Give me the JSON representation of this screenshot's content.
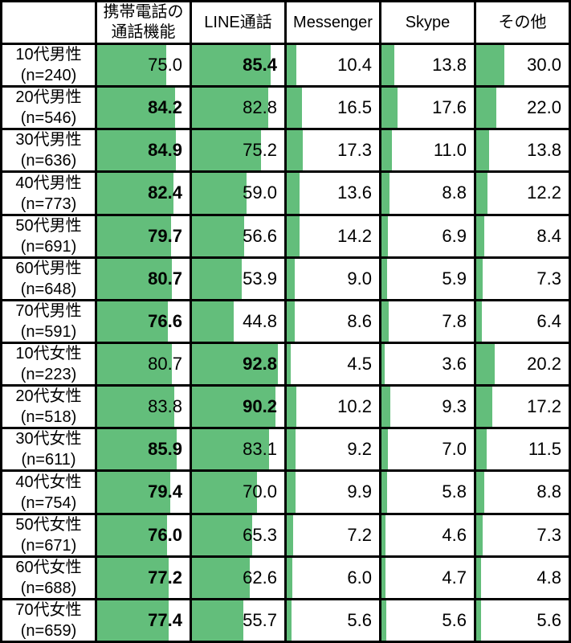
{
  "chart_data": {
    "type": "table",
    "title": "",
    "description_of_visual": "data table with proportional in-cell horizontal data bars; row maximum value rendered in bold",
    "bar_color": "#63BE7B",
    "border_color": "#000000",
    "bar_scale": [
      0,
      100
    ],
    "corner_header": "",
    "columns": [
      "携帯電話の通話機能",
      "LINE通話",
      "Messenger",
      "Skype",
      "その他"
    ],
    "rows": [
      {
        "label": "10代男性",
        "n_label": "(n=240)",
        "values": [
          75.0,
          85.4,
          10.4,
          13.8,
          30.0
        ]
      },
      {
        "label": "20代男性",
        "n_label": "(n=546)",
        "values": [
          84.2,
          82.8,
          16.5,
          17.6,
          22.0
        ]
      },
      {
        "label": "30代男性",
        "n_label": "(n=636)",
        "values": [
          84.9,
          75.2,
          17.3,
          11.0,
          13.8
        ]
      },
      {
        "label": "40代男性",
        "n_label": "(n=773)",
        "values": [
          82.4,
          59.0,
          13.6,
          8.8,
          12.2
        ]
      },
      {
        "label": "50代男性",
        "n_label": "(n=691)",
        "values": [
          79.7,
          56.6,
          14.2,
          6.9,
          8.4
        ]
      },
      {
        "label": "60代男性",
        "n_label": "(n=648)",
        "values": [
          80.7,
          53.9,
          9.0,
          5.9,
          7.3
        ]
      },
      {
        "label": "70代男性",
        "n_label": "(n=591)",
        "values": [
          76.6,
          44.8,
          8.6,
          7.8,
          6.4
        ]
      },
      {
        "label": "10代女性",
        "n_label": "(n=223)",
        "values": [
          80.7,
          92.8,
          4.5,
          3.6,
          20.2
        ]
      },
      {
        "label": "20代女性",
        "n_label": "(n=518)",
        "values": [
          83.8,
          90.2,
          10.2,
          9.3,
          17.2
        ]
      },
      {
        "label": "30代女性",
        "n_label": "(n=611)",
        "values": [
          85.9,
          83.1,
          9.2,
          7.0,
          11.5
        ]
      },
      {
        "label": "40代女性",
        "n_label": "(n=754)",
        "values": [
          79.4,
          70.0,
          9.9,
          5.8,
          8.8
        ]
      },
      {
        "label": "50代女性",
        "n_label": "(n=671)",
        "values": [
          76.0,
          65.3,
          7.2,
          4.6,
          7.3
        ]
      },
      {
        "label": "60代女性",
        "n_label": "(n=688)",
        "values": [
          77.2,
          62.6,
          6.0,
          4.7,
          4.8
        ]
      },
      {
        "label": "70代女性",
        "n_label": "(n=659)",
        "values": [
          77.4,
          55.7,
          5.6,
          5.6,
          5.6
        ]
      }
    ]
  }
}
